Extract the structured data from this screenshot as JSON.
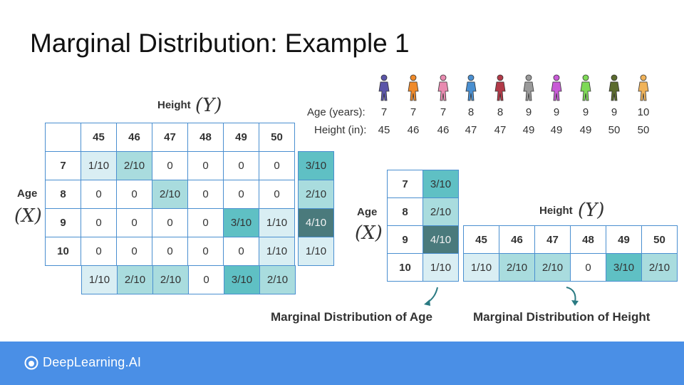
{
  "title": "Marginal Distribution: Example 1",
  "joint_table": {
    "height_label": "Height",
    "height_symbol": "(Y)",
    "age_label": "Age",
    "age_symbol": "(X)",
    "heights": [
      "45",
      "46",
      "47",
      "48",
      "49",
      "50"
    ],
    "ages": [
      "7",
      "8",
      "9",
      "10"
    ],
    "cells": [
      [
        "1/10",
        "2/10",
        "0",
        "0",
        "0",
        "0"
      ],
      [
        "0",
        "0",
        "2/10",
        "0",
        "0",
        "0"
      ],
      [
        "0",
        "0",
        "0",
        "0",
        "3/10",
        "1/10"
      ],
      [
        "0",
        "0",
        "0",
        "0",
        "0",
        "1/10"
      ]
    ],
    "row_marginals": [
      "3/10",
      "2/10",
      "4/10",
      "1/10"
    ],
    "col_marginals": [
      "1/10",
      "2/10",
      "2/10",
      "0",
      "3/10",
      "2/10"
    ]
  },
  "people": {
    "icon_colors": [
      "#5b55a8",
      "#ef8a2a",
      "#e88bb0",
      "#4a8fd0",
      "#b23a48",
      "#9a9a9a",
      "#c85bd6",
      "#7ed957",
      "#5b6b2e",
      "#f0b35a"
    ],
    "age_label": "Age (years):",
    "height_label": "Height (in):",
    "ages": [
      "7",
      "7",
      "7",
      "8",
      "8",
      "9",
      "9",
      "9",
      "9",
      "10"
    ],
    "heights": [
      "45",
      "46",
      "46",
      "47",
      "47",
      "49",
      "49",
      "49",
      "50",
      "50"
    ]
  },
  "age_marginal": {
    "label": "Age",
    "symbol": "(X)",
    "ages": [
      "7",
      "8",
      "9",
      "10"
    ],
    "values": [
      "3/10",
      "2/10",
      "4/10",
      "1/10"
    ],
    "caption": "Marginal Distribution of Age"
  },
  "height_marginal": {
    "label": "Height",
    "symbol": "(Y)",
    "heights": [
      "45",
      "46",
      "47",
      "48",
      "49",
      "50"
    ],
    "values": [
      "1/10",
      "2/10",
      "2/10",
      "0",
      "3/10",
      "2/10"
    ],
    "caption": "Marginal Distribution of Height"
  },
  "shades": {
    "1/10": "#d9eef3",
    "2/10": "#a9dcde",
    "3/10": "#5fc0c4",
    "4/10": "#4a7a7c",
    "0": "#ffffff"
  },
  "footer": {
    "logo_text": "DeepLearning.AI",
    "color": "#4a8fe6"
  }
}
